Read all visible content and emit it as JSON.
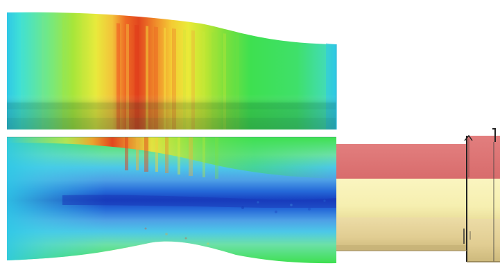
{
  "figure": {
    "background": "#ffffff",
    "palette": {
      "cyan": "#2fc8e6",
      "light_blue": "#5ab2e6",
      "blue": "#1f5fd0",
      "deep_blue": "#173fc0",
      "green": "#3ee050",
      "lime": "#b2e62e",
      "yellow": "#f2ea3a",
      "orange": "#f09a2a",
      "red": "#e0461e",
      "tool_pink": "#e07a7a",
      "tool_cream": "#f8f2b6",
      "tool_tan": "#e4d39a",
      "tool_edge": "#2a2a2a"
    },
    "panels": [
      {
        "id": "upper-contour",
        "kind": "surface-contour"
      },
      {
        "id": "lower-contour",
        "kind": "section-contour"
      },
      {
        "id": "tool-assembly",
        "kind": "die-tool"
      }
    ]
  }
}
